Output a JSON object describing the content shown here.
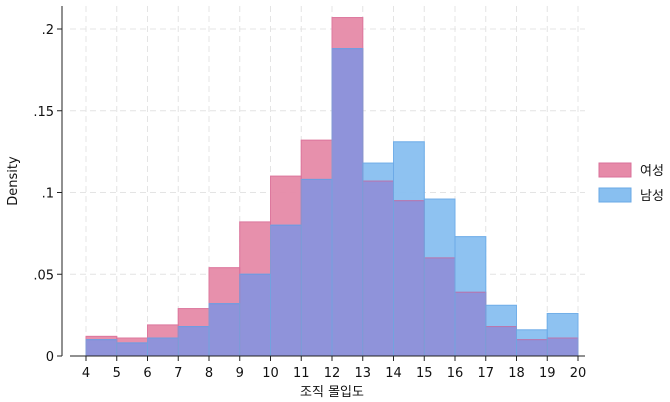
{
  "chart_data": {
    "type": "bar",
    "subtype": "overlaid-histogram",
    "title": "",
    "xlabel": "조직 몰입도",
    "ylabel": "Density",
    "xlim": [
      4,
      20
    ],
    "ylim": [
      0,
      0.2
    ],
    "x_ticks": [
      4,
      5,
      6,
      7,
      8,
      9,
      10,
      11,
      12,
      13,
      14,
      15,
      16,
      17,
      18,
      19,
      20
    ],
    "x_tick_labels": [
      "4",
      "5",
      "6",
      "7",
      "8",
      "9",
      "10",
      "11",
      "12",
      "13",
      "14",
      "15",
      "16",
      "17",
      "18",
      "19",
      "20"
    ],
    "y_ticks": [
      0,
      0.05,
      0.1,
      0.15,
      0.2
    ],
    "y_tick_labels": [
      "0",
      ".05",
      ".1",
      ".15",
      ".2"
    ],
    "grid": true,
    "legend_position": "right",
    "bin_edges": [
      4,
      5,
      6,
      7,
      8,
      9,
      10,
      11,
      12,
      13,
      14,
      15,
      16,
      17,
      18,
      19,
      20
    ],
    "series": [
      {
        "name": "여성",
        "color": "#e68aa8",
        "values": [
          0.012,
          0.011,
          0.019,
          0.029,
          0.054,
          0.082,
          0.11,
          0.132,
          0.207,
          0.107,
          0.095,
          0.06,
          0.039,
          0.018,
          0.01,
          0.011
        ]
      },
      {
        "name": "남성",
        "color": "#88bff0",
        "values": [
          0.01,
          0.008,
          0.011,
          0.018,
          0.032,
          0.05,
          0.08,
          0.108,
          0.188,
          0.118,
          0.131,
          0.096,
          0.073,
          0.031,
          0.016,
          0.026
        ]
      }
    ],
    "overlap_color": "#8f93da"
  }
}
